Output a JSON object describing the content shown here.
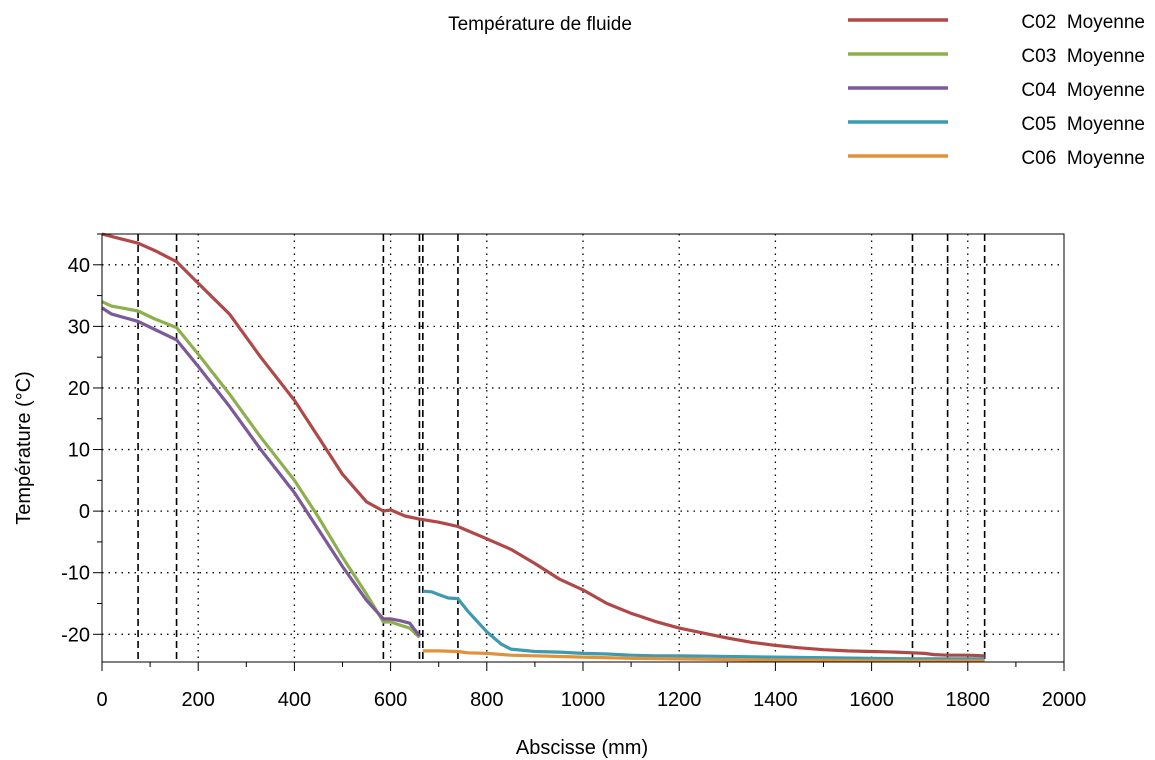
{
  "chart_data": {
    "type": "line",
    "title": "Température de fluide",
    "xlabel": "Abscisse (mm)",
    "ylabel": "Température (°C)",
    "xlim": [
      0,
      2000
    ],
    "ylim": [
      -24.5,
      45
    ],
    "x_ticks": [
      0,
      200,
      400,
      600,
      800,
      1000,
      1200,
      1400,
      1600,
      1800,
      2000
    ],
    "y_ticks": [
      -20,
      -10,
      0,
      10,
      20,
      30,
      40
    ],
    "x_tick_labels": [
      "0",
      "200",
      "400",
      "600",
      "800",
      "1000",
      "1200",
      "1400",
      "1600",
      "1800",
      "2000"
    ],
    "y_tick_labels": [
      "-20",
      "-10",
      "0",
      "10",
      "20",
      "30",
      "40"
    ],
    "grid": "dotted",
    "legend_position": "top-right",
    "vertical_markers": [
      75,
      155,
      585,
      660,
      667,
      740,
      1685,
      1758,
      1835
    ],
    "series": [
      {
        "name": "C02  Moyenne",
        "color": "#b04848",
        "points": [
          [
            0,
            45
          ],
          [
            40,
            44.2
          ],
          [
            75,
            43.5
          ],
          [
            110,
            42.3
          ],
          [
            155,
            40.5
          ],
          [
            200,
            37
          ],
          [
            265,
            32
          ],
          [
            330,
            25
          ],
          [
            400,
            18
          ],
          [
            450,
            12
          ],
          [
            500,
            6
          ],
          [
            550,
            1.5
          ],
          [
            585,
            0
          ],
          [
            600,
            0.2
          ],
          [
            630,
            -0.8
          ],
          [
            660,
            -1.3
          ],
          [
            700,
            -1.8
          ],
          [
            740,
            -2.5
          ],
          [
            800,
            -4.5
          ],
          [
            850,
            -6.2
          ],
          [
            900,
            -8.5
          ],
          [
            950,
            -11
          ],
          [
            1000,
            -12.8
          ],
          [
            1050,
            -15
          ],
          [
            1100,
            -16.6
          ],
          [
            1150,
            -17.9
          ],
          [
            1200,
            -19
          ],
          [
            1250,
            -19.8
          ],
          [
            1300,
            -20.6
          ],
          [
            1350,
            -21.3
          ],
          [
            1400,
            -21.8
          ],
          [
            1450,
            -22.2
          ],
          [
            1500,
            -22.5
          ],
          [
            1550,
            -22.7
          ],
          [
            1600,
            -22.8
          ],
          [
            1650,
            -22.9
          ],
          [
            1685,
            -23
          ],
          [
            1710,
            -23.1
          ],
          [
            1730,
            -23.3
          ],
          [
            1758,
            -23.4
          ],
          [
            1800,
            -23.4
          ],
          [
            1835,
            -23.5
          ]
        ]
      },
      {
        "name": "C03  Moyenne",
        "color": "#8db04e",
        "points": [
          [
            0,
            34
          ],
          [
            20,
            33.3
          ],
          [
            75,
            32.5
          ],
          [
            110,
            31.2
          ],
          [
            155,
            29.8
          ],
          [
            200,
            25.5
          ],
          [
            265,
            19
          ],
          [
            330,
            12
          ],
          [
            400,
            5
          ],
          [
            450,
            -1
          ],
          [
            500,
            -7.5
          ],
          [
            550,
            -13.5
          ],
          [
            585,
            -18
          ],
          [
            600,
            -18
          ],
          [
            620,
            -18.5
          ],
          [
            640,
            -19
          ],
          [
            660,
            -20.5
          ]
        ]
      },
      {
        "name": "C04  Moyenne",
        "color": "#7a5a9a",
        "points": [
          [
            0,
            33
          ],
          [
            20,
            32
          ],
          [
            75,
            30.8
          ],
          [
            110,
            29.5
          ],
          [
            155,
            27.8
          ],
          [
            200,
            23.5
          ],
          [
            265,
            17
          ],
          [
            330,
            10
          ],
          [
            400,
            3
          ],
          [
            450,
            -3
          ],
          [
            500,
            -9
          ],
          [
            550,
            -14.5
          ],
          [
            585,
            -17.5
          ],
          [
            600,
            -17.5
          ],
          [
            620,
            -17.8
          ],
          [
            640,
            -18.2
          ],
          [
            660,
            -20.3
          ]
        ]
      },
      {
        "name": "C05  Moyenne",
        "color": "#3e9ab0",
        "points": [
          [
            667,
            -13
          ],
          [
            685,
            -13.1
          ],
          [
            705,
            -13.7
          ],
          [
            720,
            -14.1
          ],
          [
            740,
            -14.2
          ],
          [
            760,
            -16.2
          ],
          [
            800,
            -19.6
          ],
          [
            830,
            -21.6
          ],
          [
            850,
            -22.4
          ],
          [
            900,
            -22.8
          ],
          [
            950,
            -22.9
          ],
          [
            1000,
            -23.1
          ],
          [
            1050,
            -23.2
          ],
          [
            1100,
            -23.4
          ],
          [
            1150,
            -23.5
          ],
          [
            1200,
            -23.5
          ],
          [
            1300,
            -23.6
          ],
          [
            1400,
            -23.7
          ],
          [
            1500,
            -23.8
          ],
          [
            1600,
            -23.9
          ],
          [
            1685,
            -24
          ],
          [
            1758,
            -24
          ],
          [
            1835,
            -24
          ]
        ]
      },
      {
        "name": "C06  Moyenne",
        "color": "#e0913a",
        "points": [
          [
            667,
            -22.7
          ],
          [
            700,
            -22.7
          ],
          [
            740,
            -22.8
          ],
          [
            760,
            -23
          ],
          [
            800,
            -23.1
          ],
          [
            850,
            -23.4
          ],
          [
            900,
            -23.5
          ],
          [
            1000,
            -23.7
          ],
          [
            1100,
            -23.9
          ],
          [
            1200,
            -24
          ],
          [
            1300,
            -24.1
          ],
          [
            1400,
            -24.2
          ],
          [
            1500,
            -24.2
          ],
          [
            1600,
            -24.3
          ],
          [
            1700,
            -24.3
          ],
          [
            1835,
            -24.3
          ]
        ]
      }
    ]
  }
}
